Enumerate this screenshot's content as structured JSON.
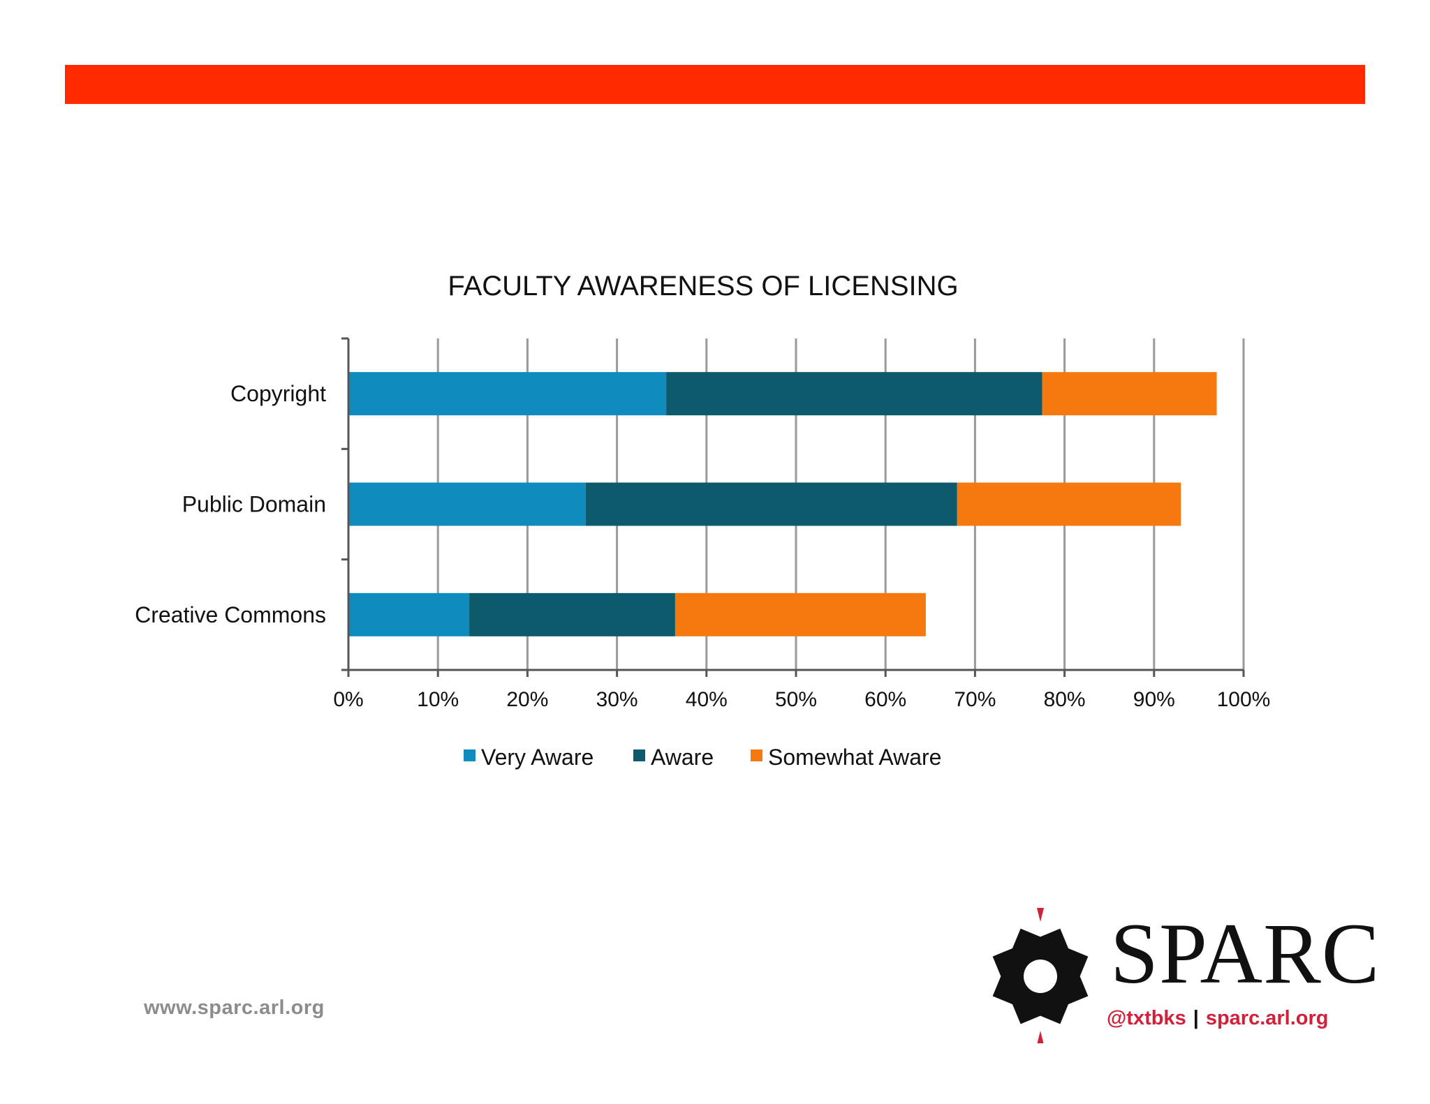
{
  "colors": {
    "banner": "#ff2a00",
    "very_aware": "#0f8bbd",
    "aware": "#0c5a6b",
    "somewhat_aware": "#f5790e",
    "grid": "#9a9a9a",
    "logo_accent": "#d1213a"
  },
  "chart_data": {
    "type": "bar",
    "orientation": "horizontal",
    "stacked": true,
    "title": "Faculty Awareness of Licensing",
    "categories": [
      "Copyright",
      "Public Domain",
      "Creative Commons"
    ],
    "series": [
      {
        "name": "Very Aware",
        "values": [
          35.5,
          26.5,
          13.5
        ]
      },
      {
        "name": "Aware",
        "values": [
          42.0,
          41.5,
          23.0
        ]
      },
      {
        "name": "Somewhat Aware",
        "values": [
          19.5,
          25.0,
          28.0
        ]
      }
    ],
    "xlim": [
      0,
      100
    ],
    "xticks": [
      "0%",
      "10%",
      "20%",
      "30%",
      "40%",
      "50%",
      "60%",
      "70%",
      "80%",
      "90%",
      "100%"
    ],
    "grid": true,
    "legend": "bottom"
  },
  "footer": {
    "url": "www.sparc.arl.org"
  },
  "logo": {
    "wordmark": "SPARC",
    "handle": "@txtbks",
    "separator": "|",
    "site": "sparc.arl.org"
  }
}
